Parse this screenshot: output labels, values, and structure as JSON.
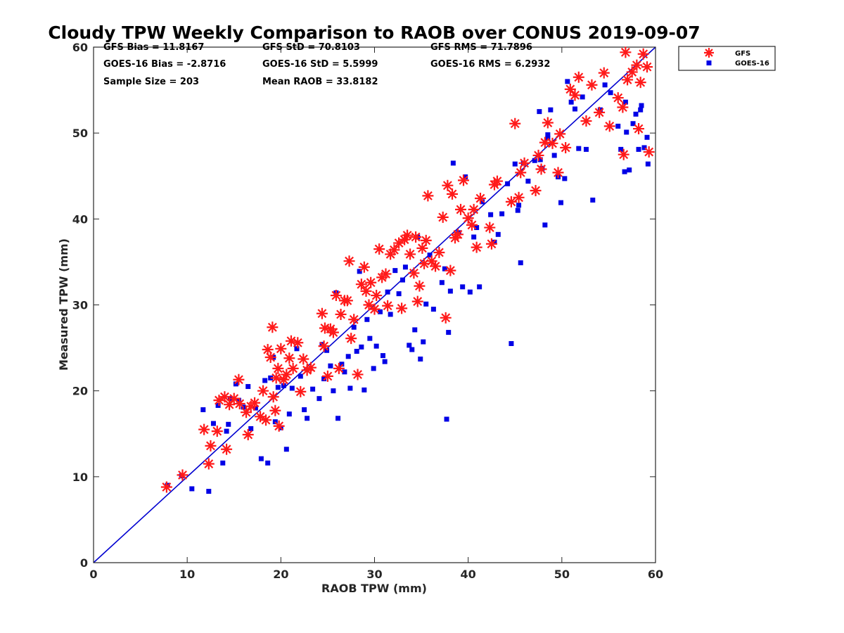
{
  "chart_data": {
    "type": "scatter",
    "title": "Cloudy TPW Weekly Comparison to RAOB over CONUS 2019-09-07",
    "xlabel": "RAOB TPW (mm)",
    "ylabel": "Measured TPW (mm)",
    "xlim": [
      0,
      60
    ],
    "ylim": [
      0,
      60
    ],
    "xticks": [
      0,
      10,
      20,
      30,
      40,
      50,
      60
    ],
    "yticks": [
      0,
      10,
      20,
      30,
      40,
      50,
      60
    ],
    "grid": false,
    "legend_position": "outside top-right",
    "reference_line": {
      "name": "1:1 line",
      "x": [
        0,
        60
      ],
      "y": [
        0,
        60
      ],
      "color": "#0000d0"
    },
    "stats": [
      [
        "GFS Bias = 11.8167",
        "GFS StD = 70.8103",
        "GFS RMS = 71.7896"
      ],
      [
        "GOES-16 Bias = -2.8716",
        "GOES-16 StD = 5.5999",
        "GOES-16 RMS = 6.2932"
      ],
      [
        "Sample Size = 203",
        "Mean RAOB = 33.8182"
      ]
    ],
    "series": [
      {
        "name": "GFS",
        "marker": "asterisk",
        "color": "#ff1a1a",
        "points": [
          [
            7.8,
            8.8
          ],
          [
            9.5,
            10.2
          ],
          [
            11.8,
            15.5
          ],
          [
            12.3,
            11.5
          ],
          [
            12.5,
            13.6
          ],
          [
            13.2,
            15.3
          ],
          [
            13.4,
            18.9
          ],
          [
            14.0,
            19.3
          ],
          [
            14.2,
            13.2
          ],
          [
            14.5,
            18.4
          ],
          [
            15.0,
            19.1
          ],
          [
            15.5,
            21.3
          ],
          [
            15.6,
            18.5
          ],
          [
            16.3,
            17.5
          ],
          [
            16.5,
            14.9
          ],
          [
            16.8,
            18.2
          ],
          [
            17.2,
            18.6
          ],
          [
            17.8,
            17.0
          ],
          [
            18.1,
            20.0
          ],
          [
            18.4,
            16.6
          ],
          [
            18.6,
            24.8
          ],
          [
            18.9,
            23.9
          ],
          [
            19.1,
            27.4
          ],
          [
            19.2,
            19.3
          ],
          [
            19.4,
            17.7
          ],
          [
            19.5,
            21.5
          ],
          [
            19.7,
            22.6
          ],
          [
            19.8,
            15.9
          ],
          [
            20.0,
            24.9
          ],
          [
            20.3,
            21.3
          ],
          [
            20.6,
            21.9
          ],
          [
            20.9,
            23.8
          ],
          [
            21.1,
            25.8
          ],
          [
            21.3,
            22.6
          ],
          [
            21.8,
            25.6
          ],
          [
            22.1,
            19.9
          ],
          [
            22.4,
            23.7
          ],
          [
            22.8,
            22.4
          ],
          [
            23.2,
            22.7
          ],
          [
            24.4,
            29.0
          ],
          [
            24.6,
            25.2
          ],
          [
            24.7,
            27.3
          ],
          [
            25.0,
            21.7
          ],
          [
            25.3,
            27.2
          ],
          [
            25.6,
            26.8
          ],
          [
            25.9,
            31.1
          ],
          [
            26.2,
            22.6
          ],
          [
            26.4,
            28.9
          ],
          [
            26.8,
            30.5
          ],
          [
            27.1,
            30.5
          ],
          [
            27.3,
            35.1
          ],
          [
            27.5,
            26.1
          ],
          [
            27.8,
            28.3
          ],
          [
            28.2,
            21.9
          ],
          [
            28.6,
            32.4
          ],
          [
            28.9,
            34.4
          ],
          [
            29.1,
            31.6
          ],
          [
            29.4,
            30.0
          ],
          [
            29.6,
            32.6
          ],
          [
            30.0,
            29.5
          ],
          [
            30.2,
            31.1
          ],
          [
            30.5,
            36.5
          ],
          [
            30.8,
            33.2
          ],
          [
            31.2,
            33.6
          ],
          [
            31.4,
            29.9
          ],
          [
            31.7,
            35.9
          ],
          [
            32.1,
            36.4
          ],
          [
            32.6,
            37.2
          ],
          [
            32.9,
            29.6
          ],
          [
            33.2,
            37.6
          ],
          [
            33.5,
            38.1
          ],
          [
            33.8,
            35.9
          ],
          [
            34.2,
            33.7
          ],
          [
            34.4,
            37.9
          ],
          [
            34.6,
            30.4
          ],
          [
            34.8,
            32.2
          ],
          [
            35.1,
            36.6
          ],
          [
            35.3,
            34.8
          ],
          [
            35.5,
            37.5
          ],
          [
            35.7,
            42.7
          ],
          [
            36.1,
            35.1
          ],
          [
            36.5,
            34.5
          ],
          [
            36.9,
            36.1
          ],
          [
            37.3,
            40.2
          ],
          [
            37.6,
            28.5
          ],
          [
            37.8,
            43.9
          ],
          [
            38.1,
            34.0
          ],
          [
            38.3,
            42.9
          ],
          [
            38.6,
            37.8
          ],
          [
            38.9,
            38.2
          ],
          [
            39.2,
            41.1
          ],
          [
            39.5,
            44.5
          ],
          [
            40.0,
            40.1
          ],
          [
            40.4,
            39.3
          ],
          [
            40.6,
            41.1
          ],
          [
            40.9,
            36.7
          ],
          [
            41.3,
            42.4
          ],
          [
            42.3,
            39.0
          ],
          [
            42.5,
            37.1
          ],
          [
            42.8,
            44.0
          ],
          [
            43.1,
            44.4
          ],
          [
            44.6,
            42.0
          ],
          [
            45.0,
            51.1
          ],
          [
            45.4,
            42.5
          ],
          [
            45.6,
            45.4
          ],
          [
            46.0,
            46.5
          ],
          [
            47.2,
            43.3
          ],
          [
            47.5,
            47.4
          ],
          [
            47.8,
            45.8
          ],
          [
            48.2,
            48.9
          ],
          [
            48.5,
            51.2
          ],
          [
            49.0,
            48.8
          ],
          [
            49.6,
            45.4
          ],
          [
            49.8,
            49.9
          ],
          [
            50.4,
            48.3
          ],
          [
            50.9,
            55.1
          ],
          [
            51.4,
            54.4
          ],
          [
            51.8,
            56.5
          ],
          [
            52.6,
            51.4
          ],
          [
            53.2,
            55.6
          ],
          [
            54.0,
            52.4
          ],
          [
            54.5,
            57.0
          ],
          [
            55.1,
            50.8
          ],
          [
            56.0,
            54.1
          ],
          [
            56.6,
            47.5
          ],
          [
            56.8,
            59.4
          ],
          [
            57.0,
            56.2
          ],
          [
            57.5,
            57.1
          ],
          [
            58.0,
            57.9
          ],
          [
            58.4,
            55.9
          ],
          [
            58.7,
            59.2
          ],
          [
            59.1,
            57.7
          ],
          [
            59.3,
            47.8
          ],
          [
            58.2,
            50.5
          ],
          [
            56.5,
            53.0
          ]
        ]
      },
      {
        "name": "GOES-16",
        "marker": "square",
        "color": "#0000e6",
        "points": [
          [
            7.9,
            9.0
          ],
          [
            9.4,
            10.1
          ],
          [
            10.5,
            8.6
          ],
          [
            11.7,
            17.8
          ],
          [
            12.3,
            8.3
          ],
          [
            12.8,
            16.2
          ],
          [
            13.3,
            18.3
          ],
          [
            13.8,
            11.6
          ],
          [
            14.2,
            15.3
          ],
          [
            14.4,
            16.1
          ],
          [
            14.6,
            19.1
          ],
          [
            15.2,
            20.8
          ],
          [
            15.5,
            18.9
          ],
          [
            16.0,
            18.1
          ],
          [
            16.5,
            20.5
          ],
          [
            16.8,
            15.6
          ],
          [
            17.3,
            18.0
          ],
          [
            17.9,
            12.1
          ],
          [
            18.3,
            21.2
          ],
          [
            18.6,
            11.6
          ],
          [
            18.9,
            21.5
          ],
          [
            19.2,
            23.9
          ],
          [
            19.4,
            16.4
          ],
          [
            19.7,
            20.4
          ],
          [
            20.0,
            15.7
          ],
          [
            20.3,
            20.6
          ],
          [
            20.6,
            13.2
          ],
          [
            20.9,
            17.3
          ],
          [
            21.2,
            20.3
          ],
          [
            21.7,
            24.9
          ],
          [
            22.1,
            21.7
          ],
          [
            22.5,
            17.8
          ],
          [
            22.8,
            16.8
          ],
          [
            23.4,
            20.2
          ],
          [
            24.1,
            19.1
          ],
          [
            24.4,
            25.4
          ],
          [
            24.6,
            21.4
          ],
          [
            24.9,
            24.7
          ],
          [
            25.3,
            22.9
          ],
          [
            25.6,
            20.0
          ],
          [
            25.9,
            31.4
          ],
          [
            26.1,
            16.8
          ],
          [
            26.5,
            23.1
          ],
          [
            26.8,
            22.2
          ],
          [
            27.2,
            24.0
          ],
          [
            27.4,
            20.3
          ],
          [
            27.8,
            27.4
          ],
          [
            28.1,
            24.6
          ],
          [
            28.4,
            33.9
          ],
          [
            28.6,
            25.1
          ],
          [
            28.9,
            20.1
          ],
          [
            29.2,
            28.3
          ],
          [
            29.5,
            26.1
          ],
          [
            29.9,
            22.6
          ],
          [
            30.2,
            25.2
          ],
          [
            30.6,
            29.2
          ],
          [
            30.9,
            24.1
          ],
          [
            31.1,
            23.4
          ],
          [
            31.4,
            31.5
          ],
          [
            31.7,
            28.9
          ],
          [
            32.2,
            34.0
          ],
          [
            32.6,
            31.3
          ],
          [
            33.0,
            32.9
          ],
          [
            33.3,
            34.4
          ],
          [
            33.7,
            25.3
          ],
          [
            34.0,
            24.8
          ],
          [
            34.3,
            27.1
          ],
          [
            34.6,
            37.9
          ],
          [
            34.9,
            23.7
          ],
          [
            35.2,
            25.7
          ],
          [
            35.5,
            30.1
          ],
          [
            35.9,
            35.8
          ],
          [
            36.3,
            29.5
          ],
          [
            37.2,
            32.6
          ],
          [
            37.5,
            34.2
          ],
          [
            37.7,
            16.7
          ],
          [
            37.9,
            26.8
          ],
          [
            38.1,
            31.6
          ],
          [
            38.4,
            46.5
          ],
          [
            39.0,
            38.4
          ],
          [
            39.4,
            32.1
          ],
          [
            39.7,
            44.9
          ],
          [
            40.2,
            31.5
          ],
          [
            40.6,
            37.9
          ],
          [
            40.9,
            39.0
          ],
          [
            41.2,
            32.1
          ],
          [
            41.5,
            42.0
          ],
          [
            42.4,
            40.5
          ],
          [
            42.8,
            37.3
          ],
          [
            43.2,
            38.2
          ],
          [
            43.6,
            40.6
          ],
          [
            44.2,
            44.1
          ],
          [
            44.6,
            25.5
          ],
          [
            45.0,
            46.4
          ],
          [
            45.3,
            41.0
          ],
          [
            45.6,
            34.9
          ],
          [
            45.9,
            46.5
          ],
          [
            46.4,
            44.4
          ],
          [
            47.1,
            46.8
          ],
          [
            47.6,
            52.5
          ],
          [
            47.9,
            45.9
          ],
          [
            48.2,
            39.3
          ],
          [
            48.5,
            49.8
          ],
          [
            48.8,
            52.7
          ],
          [
            49.2,
            47.4
          ],
          [
            49.6,
            44.9
          ],
          [
            49.9,
            41.9
          ],
          [
            50.3,
            44.7
          ],
          [
            50.6,
            56.0
          ],
          [
            51.0,
            53.6
          ],
          [
            51.4,
            52.8
          ],
          [
            51.8,
            48.2
          ],
          [
            52.2,
            54.2
          ],
          [
            52.6,
            48.1
          ],
          [
            53.3,
            42.2
          ],
          [
            54.1,
            52.7
          ],
          [
            54.6,
            55.6
          ],
          [
            55.2,
            54.7
          ],
          [
            56.0,
            50.8
          ],
          [
            56.3,
            48.1
          ],
          [
            56.7,
            45.5
          ],
          [
            56.9,
            50.1
          ],
          [
            57.2,
            45.7
          ],
          [
            57.6,
            51.1
          ],
          [
            57.9,
            52.2
          ],
          [
            58.2,
            48.1
          ],
          [
            58.5,
            53.2
          ],
          [
            58.8,
            48.3
          ],
          [
            59.1,
            49.5
          ],
          [
            59.2,
            46.4
          ],
          [
            56.8,
            53.6
          ],
          [
            58.4,
            52.7
          ],
          [
            45.4,
            41.6
          ],
          [
            47.7,
            46.9
          ],
          [
            48.5,
            49.4
          ]
        ]
      }
    ]
  }
}
